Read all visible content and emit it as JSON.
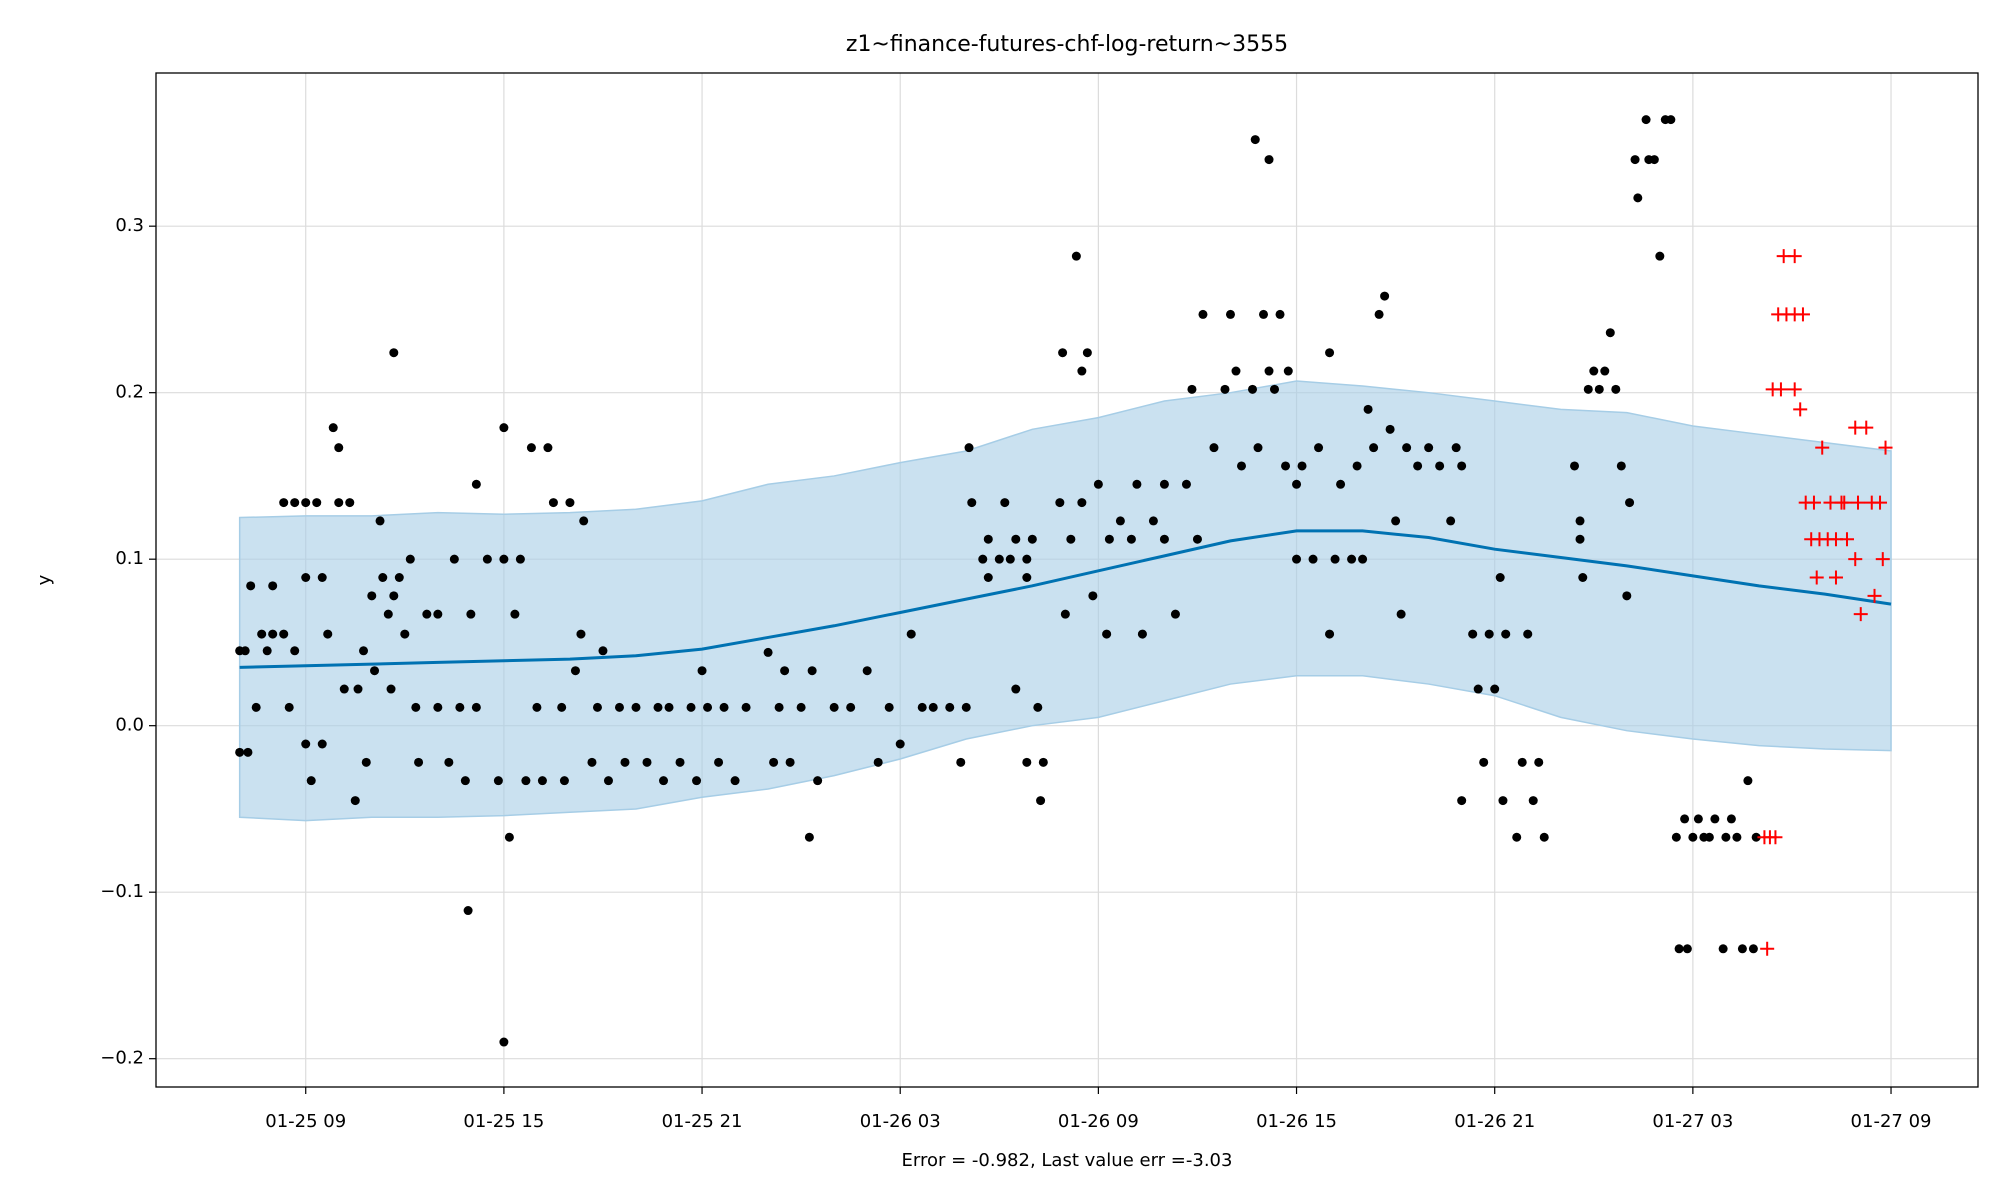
{
  "chart_data": {
    "type": "scatter",
    "title": "z1~finance-futures-chf-log-return~3555",
    "xlabel": "Error = -0.982, Last value err =-3.03",
    "ylabel": "y",
    "xlim": [
      "01-25 04:28",
      "01-27 11:38"
    ],
    "ylim": [
      -0.217,
      0.392
    ],
    "xticks": [
      {
        "value": "01-25 09:00",
        "label": "01-25 09"
      },
      {
        "value": "01-25 15:00",
        "label": "01-25 15"
      },
      {
        "value": "01-25 21:00",
        "label": "01-25 21"
      },
      {
        "value": "01-26 03:00",
        "label": "01-26 03"
      },
      {
        "value": "01-26 09:00",
        "label": "01-26 09"
      },
      {
        "value": "01-26 15:00",
        "label": "01-26 15"
      },
      {
        "value": "01-26 21:00",
        "label": "01-26 21"
      },
      {
        "value": "01-27 03:00",
        "label": "01-27 03"
      },
      {
        "value": "01-27 09:00",
        "label": "01-27 09"
      }
    ],
    "yticks": [
      {
        "value": -0.2,
        "label": "−0.2"
      },
      {
        "value": -0.1,
        "label": "−0.1"
      },
      {
        "value": 0,
        "label": "0.0"
      },
      0.1,
      0.2,
      0.3
    ],
    "grid": true,
    "series": [
      {
        "marker": "dot",
        "color": "#000000",
        "x": [
          "01-25 07:00",
          "01-25 07:00",
          "01-25 07:10",
          "01-25 07:15",
          "01-25 07:20",
          "01-25 07:30",
          "01-25 07:40",
          "01-25 07:50",
          "01-25 08:00",
          "01-25 08:00",
          "01-25 08:20",
          "01-25 08:20",
          "01-25 08:30",
          "01-25 08:40",
          "01-25 08:40",
          "01-25 09:00",
          "01-25 09:00",
          "01-25 09:00",
          "01-25 09:10",
          "01-25 09:20",
          "01-25 09:30",
          "01-25 09:30",
          "01-25 09:40",
          "01-25 09:50",
          "01-25 10:00",
          "01-25 10:00",
          "01-25 10:10",
          "01-25 10:20",
          "01-25 10:30",
          "01-25 10:35",
          "01-25 10:45",
          "01-25 10:50",
          "01-25 11:00",
          "01-25 11:05",
          "01-25 11:15",
          "01-25 11:20",
          "01-25 11:30",
          "01-25 11:35",
          "01-25 11:40",
          "01-25 11:40",
          "01-25 11:50",
          "01-25 12:00",
          "01-25 12:10",
          "01-25 12:20",
          "01-25 12:25",
          "01-25 12:40",
          "01-25 13:00",
          "01-25 13:00",
          "01-25 13:20",
          "01-25 13:30",
          "01-25 13:40",
          "01-25 13:50",
          "01-25 13:55",
          "01-25 14:00",
          "01-25 14:10",
          "01-25 14:10",
          "01-25 14:30",
          "01-25 14:50",
          "01-25 15:00",
          "01-25 15:00",
          "01-25 15:00",
          "01-25 15:10",
          "01-25 15:20",
          "01-25 15:30",
          "01-25 15:40",
          "01-25 15:50",
          "01-25 16:00",
          "01-25 16:10",
          "01-25 16:20",
          "01-25 16:30",
          "01-25 16:45",
          "01-25 16:50",
          "01-25 17:00",
          "01-25 17:10",
          "01-25 17:20",
          "01-25 17:25",
          "01-25 17:40",
          "01-25 17:50",
          "01-25 18:00",
          "01-25 18:10",
          "01-25 18:30",
          "01-25 18:40",
          "01-25 19:00",
          "01-25 19:20",
          "01-25 19:40",
          "01-25 19:50",
          "01-25 20:00",
          "01-25 20:20",
          "01-25 20:40",
          "01-25 20:50",
          "01-25 21:00",
          "01-25 21:10",
          "01-25 21:30",
          "01-25 21:40",
          "01-25 22:00",
          "01-25 22:20",
          "01-25 23:00",
          "01-25 23:10",
          "01-25 23:20",
          "01-25 23:30",
          "01-25 23:40",
          "01-26 00:00",
          "01-26 00:15",
          "01-26 00:20",
          "01-26 00:30",
          "01-26 01:00",
          "01-26 01:30",
          "01-26 02:00",
          "01-26 02:20",
          "01-26 02:40",
          "01-26 03:00",
          "01-26 03:20",
          "01-26 03:40",
          "01-26 04:00",
          "01-26 04:30",
          "01-26 04:50",
          "01-26 05:00",
          "01-26 05:05",
          "01-26 05:10",
          "01-26 05:30",
          "01-26 05:40",
          "01-26 05:40",
          "01-26 06:00",
          "01-26 06:10",
          "01-26 06:20",
          "01-26 06:30",
          "01-26 06:30",
          "01-26 06:50",
          "01-26 06:50",
          "01-26 07:00",
          "01-26 07:10",
          "01-26 06:50",
          "01-26 07:15",
          "01-26 07:20",
          "01-26 07:50",
          "01-26 08:00",
          "01-26 07:55",
          "01-26 08:10",
          "01-26 08:20",
          "01-26 08:30",
          "01-26 08:30",
          "01-26 08:40",
          "01-26 08:50",
          "01-26 09:00",
          "01-26 09:15",
          "01-26 09:20",
          "01-26 09:40",
          "01-26 10:00",
          "01-26 10:10",
          "01-26 10:20",
          "01-26 10:40",
          "01-26 11:00",
          "01-26 11:00",
          "01-26 11:20",
          "01-26 11:40",
          "01-26 11:50",
          "01-26 12:00",
          "01-26 12:10",
          "01-26 12:30",
          "01-26 12:50",
          "01-26 13:00",
          "01-26 13:10",
          "01-26 13:20",
          "01-26 13:40",
          "01-26 13:45",
          "01-26 13:50",
          "01-26 14:00",
          "01-26 14:10",
          "01-26 14:10",
          "01-26 14:20",
          "01-26 14:30",
          "01-26 14:40",
          "01-26 14:45",
          "01-26 15:00",
          "01-26 15:00",
          "01-26 15:10",
          "01-26 15:30",
          "01-26 15:40",
          "01-26 16:00",
          "01-26 16:00",
          "01-26 16:10",
          "01-26 16:20",
          "01-26 16:40",
          "01-26 16:50",
          "01-26 17:00",
          "01-26 17:10",
          "01-26 17:20",
          "01-26 17:30",
          "01-26 17:40",
          "01-26 17:50",
          "01-26 18:00",
          "01-26 18:10",
          "01-26 18:20",
          "01-26 18:40",
          "01-26 19:00",
          "01-26 19:20",
          "01-26 19:40",
          "01-26 19:50",
          "01-26 20:00",
          "01-26 20:00",
          "01-26 20:20",
          "01-26 20:30",
          "01-26 20:40",
          "01-26 20:50",
          "01-26 21:00",
          "01-26 21:10",
          "01-26 21:15",
          "01-26 21:20",
          "01-26 21:40",
          "01-26 21:50",
          "01-26 22:00",
          "01-26 22:10",
          "01-26 22:20",
          "01-26 22:30",
          "01-26 23:25",
          "01-26 23:35",
          "01-26 23:35",
          "01-26 23:40",
          "01-26 23:50",
          "01-27 00:00",
          "01-27 00:10",
          "01-27 00:20",
          "01-27 00:30",
          "01-27 00:40",
          "01-27 00:50",
          "01-27 01:00",
          "01-27 01:05",
          "01-27 01:15",
          "01-27 01:20",
          "01-27 01:35",
          "01-27 01:40",
          "01-27 01:50",
          "01-27 02:00",
          "01-27 02:10",
          "01-27 02:20",
          "01-27 02:30",
          "01-27 02:35",
          "01-27 02:45",
          "01-27 02:50",
          "01-27 03:00",
          "01-27 03:10",
          "01-27 03:20",
          "01-27 03:30",
          "01-27 03:40",
          "01-27 03:55",
          "01-27 04:00",
          "01-27 04:10",
          "01-27 04:20",
          "01-27 04:30",
          "01-27 04:40",
          "01-27 04:50",
          "01-27 04:55"
        ],
        "values": [
          0.045,
          -0.016,
          0.045,
          -0.016,
          0.084,
          0.011,
          0.055,
          0.045,
          0.055,
          0.084,
          0.055,
          0.134,
          0.011,
          0.134,
          0.045,
          0.134,
          0.089,
          -0.011,
          -0.033,
          0.134,
          0.089,
          -0.011,
          0.055,
          0.179,
          0.167,
          0.134,
          0.022,
          0.134,
          -0.045,
          0.022,
          0.045,
          -0.022,
          0.078,
          0.033,
          0.123,
          0.089,
          0.067,
          0.022,
          0.078,
          0.224,
          0.089,
          0.055,
          0.1,
          0.011,
          -0.022,
          0.067,
          0.011,
          0.067,
          -0.022,
          0.1,
          0.011,
          -0.033,
          -0.111,
          0.067,
          0.145,
          0.011,
          0.1,
          -0.033,
          0.1,
          0.179,
          -0.19,
          -0.067,
          0.067,
          0.1,
          -0.033,
          0.167,
          0.011,
          -0.033,
          0.167,
          0.134,
          0.011,
          -0.033,
          0.134,
          0.033,
          0.055,
          0.123,
          -0.022,
          0.011,
          0.045,
          -0.033,
          0.011,
          -0.022,
          0.011,
          -0.022,
          0.011,
          -0.033,
          0.011,
          -0.022,
          0.011,
          -0.033,
          0.033,
          0.011,
          -0.022,
          0.011,
          -0.033,
          0.011,
          0.044,
          -0.022,
          0.011,
          0.033,
          -0.022,
          0.011,
          -0.067,
          0.033,
          -0.033,
          0.011,
          0.011,
          0.033,
          -0.022,
          0.011,
          -0.011,
          0.055,
          0.011,
          0.011,
          0.011,
          -0.022,
          0.011,
          0.167,
          0.134,
          0.1,
          0.112,
          0.089,
          0.1,
          0.134,
          0.1,
          0.022,
          0.112,
          0.1,
          0.089,
          0.112,
          0.011,
          -0.022,
          -0.045,
          -0.022,
          0.134,
          0.067,
          0.224,
          0.112,
          0.282,
          0.213,
          0.134,
          0.224,
          0.078,
          0.145,
          0.055,
          0.112,
          0.123,
          0.112,
          0.145,
          0.055,
          0.123,
          0.145,
          0.112,
          0.067,
          0.145,
          0.202,
          0.112,
          0.247,
          0.167,
          0.202,
          0.247,
          0.213,
          0.156,
          0.202,
          0.352,
          0.167,
          0.247,
          0.34,
          0.213,
          0.202,
          0.247,
          0.156,
          0.213,
          0.1,
          0.145,
          0.156,
          0.1,
          0.167,
          0.224,
          0.055,
          0.1,
          0.145,
          0.1,
          0.156,
          0.1,
          0.19,
          0.167,
          0.247,
          0.258,
          0.178,
          0.123,
          0.067,
          0.167,
          0.156,
          0.167,
          0.156,
          0.123,
          0.167,
          -0.045,
          0.156,
          0.055,
          0.022,
          -0.022,
          0.055,
          0.022,
          0.089,
          -0.045,
          0.055,
          -0.067,
          -0.022,
          0.055,
          -0.045,
          -0.022,
          -0.067,
          0.156,
          0.123,
          0.112,
          0.089,
          0.202,
          0.213,
          0.202,
          0.213,
          0.236,
          0.202,
          0.156,
          0.078,
          0.134,
          0.34,
          0.317,
          0.364,
          0.34,
          0.34,
          0.282,
          0.364,
          0.364,
          -0.067,
          -0.134,
          -0.056,
          -0.134,
          -0.067,
          -0.056,
          -0.067,
          -0.067,
          -0.056,
          -0.134,
          -0.067,
          -0.056,
          -0.067,
          -0.134,
          -0.033,
          -0.134,
          -0.067
        ]
      },
      {
        "marker": "line",
        "color": "#0072b2",
        "band_color": "#a6cde6",
        "x": [
          "01-25 07:00",
          "01-25 09:00",
          "01-25 11:00",
          "01-25 13:00",
          "01-25 15:00",
          "01-25 17:00",
          "01-25 19:00",
          "01-25 21:00",
          "01-25 23:00",
          "01-26 01:00",
          "01-26 03:00",
          "01-26 05:00",
          "01-26 07:00",
          "01-26 09:00",
          "01-26 11:00",
          "01-26 13:00",
          "01-26 15:00",
          "01-26 17:00",
          "01-26 19:00",
          "01-26 21:00",
          "01-26 23:00",
          "01-27 01:00",
          "01-27 03:00",
          "01-27 05:00",
          "01-27 07:00",
          "01-27 09:00"
        ],
        "values": [
          0.035,
          0.036,
          0.037,
          0.038,
          0.039,
          0.04,
          0.042,
          0.046,
          0.053,
          0.06,
          0.068,
          0.076,
          0.084,
          0.093,
          0.102,
          0.111,
          0.117,
          0.117,
          0.113,
          0.106,
          0.101,
          0.096,
          0.09,
          0.084,
          0.079,
          0.073
        ],
        "upper": [
          0.125,
          0.126,
          0.126,
          0.128,
          0.127,
          0.128,
          0.13,
          0.135,
          0.145,
          0.15,
          0.158,
          0.165,
          0.178,
          0.185,
          0.195,
          0.2,
          0.207,
          0.204,
          0.2,
          0.195,
          0.19,
          0.188,
          0.18,
          0.175,
          0.17,
          0.165
        ],
        "lower": [
          -0.055,
          -0.057,
          -0.055,
          -0.055,
          -0.054,
          -0.052,
          -0.05,
          -0.043,
          -0.038,
          -0.03,
          -0.02,
          -0.008,
          0,
          0.005,
          0.015,
          0.025,
          0.03,
          0.03,
          0.025,
          0.018,
          0.005,
          -0.003,
          -0.008,
          -0.012,
          -0.014,
          -0.015
        ]
      },
      {
        "marker": "plus",
        "color": "#ff0000",
        "x": [
          "01-27 05:45",
          "01-27 06:05",
          "01-27 05:35",
          "01-27 05:50",
          "01-27 06:05",
          "01-27 06:20",
          "01-27 05:25",
          "01-27 05:40",
          "01-27 06:05",
          "01-27 06:15",
          "01-27 06:55",
          "01-27 06:25",
          "01-27 06:40",
          "01-27 07:10",
          "01-27 07:30",
          "01-27 07:35",
          "01-27 08:00",
          "01-27 08:25",
          "01-27 08:40",
          "01-27 06:35",
          "01-27 06:50",
          "01-27 07:05",
          "01-27 07:20",
          "01-27 07:40",
          "01-27 06:45",
          "01-27 07:20",
          "01-27 07:55",
          "01-27 08:15",
          "01-27 08:50",
          "01-27 07:55",
          "01-27 08:45",
          "01-27 08:30",
          "01-27 08:05",
          "01-27 05:10",
          "01-27 05:20",
          "01-27 05:30",
          "01-27 05:15"
        ],
        "values": [
          0.282,
          0.282,
          0.247,
          0.247,
          0.247,
          0.247,
          0.202,
          0.202,
          0.202,
          0.19,
          0.167,
          0.134,
          0.134,
          0.134,
          0.134,
          0.134,
          0.134,
          0.134,
          0.134,
          0.112,
          0.112,
          0.112,
          0.112,
          0.112,
          0.089,
          0.089,
          0.179,
          0.179,
          0.167,
          0.1,
          0.1,
          0.078,
          0.067,
          -0.067,
          -0.067,
          -0.067,
          -0.134
        ]
      }
    ]
  }
}
